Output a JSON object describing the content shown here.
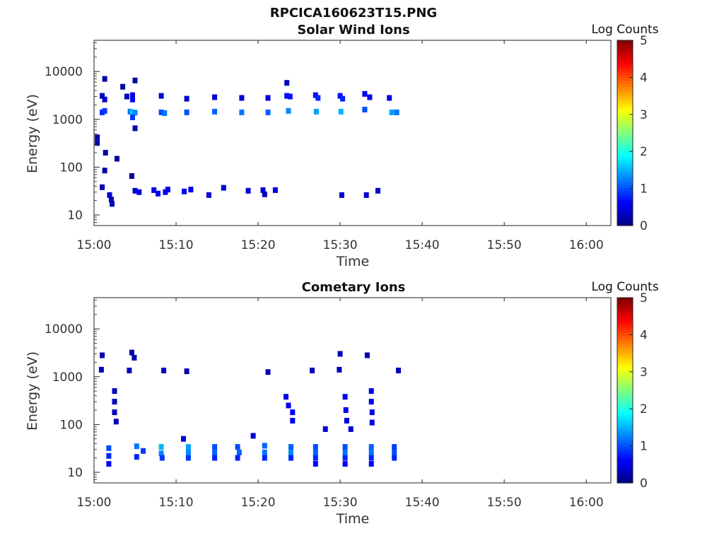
{
  "figure_title": "RPCICA160623T15.PNG",
  "colorbar": {
    "label": "Log Counts",
    "ticks": [
      "0",
      "1",
      "2",
      "3",
      "4",
      "5"
    ],
    "range": [
      0,
      5
    ],
    "colormap": "jet"
  },
  "chart_data": [
    {
      "type": "heatmap",
      "title": "Solar Wind Ions",
      "xlabel": "Time",
      "ylabel": "Energy (eV)",
      "x_ticks": [
        "15:00",
        "15:10",
        "15:20",
        "15:30",
        "15:40",
        "15:50",
        "16:00"
      ],
      "y_ticks": [
        "10",
        "100",
        "1000",
        "10000"
      ],
      "y_scale": "log",
      "ylim": [
        6,
        45000
      ],
      "xlim_minutes_after_15_00": [
        0,
        63
      ],
      "cells": [
        {
          "t": 1.0,
          "e": 3100,
          "v": 0.3
        },
        {
          "t": 1.0,
          "e": 1400,
          "v": 0.8
        },
        {
          "t": 1.3,
          "e": 7000,
          "v": 0.2
        },
        {
          "t": 1.3,
          "e": 2600,
          "v": 0.4
        },
        {
          "t": 1.3,
          "e": 1500,
          "v": 0.9
        },
        {
          "t": 0.4,
          "e": 420,
          "v": 0.2
        },
        {
          "t": 0.4,
          "e": 320,
          "v": 0.2
        },
        {
          "t": 1.4,
          "e": 200,
          "v": 0.2
        },
        {
          "t": 2.8,
          "e": 150,
          "v": 0.2
        },
        {
          "t": 1.3,
          "e": 85,
          "v": 0.2
        },
        {
          "t": 3.5,
          "e": 4800,
          "v": 0.2
        },
        {
          "t": 4.0,
          "e": 3000,
          "v": 0.3
        },
        {
          "t": 4.7,
          "e": 3200,
          "v": 0.5
        },
        {
          "t": 4.7,
          "e": 2600,
          "v": 0.6
        },
        {
          "t": 4.4,
          "e": 1450,
          "v": 1.2
        },
        {
          "t": 4.7,
          "e": 1400,
          "v": 1.6
        },
        {
          "t": 5.0,
          "e": 1380,
          "v": 1.3
        },
        {
          "t": 4.7,
          "e": 1100,
          "v": 0.9
        },
        {
          "t": 5.0,
          "e": 6500,
          "v": 0.2
        },
        {
          "t": 5.0,
          "e": 650,
          "v": 0.2
        },
        {
          "t": 4.6,
          "e": 65,
          "v": 0.1
        },
        {
          "t": 8.2,
          "e": 3100,
          "v": 0.4
        },
        {
          "t": 8.2,
          "e": 1400,
          "v": 1.0
        },
        {
          "t": 8.6,
          "e": 1350,
          "v": 1.2
        },
        {
          "t": 11.3,
          "e": 2700,
          "v": 0.4
        },
        {
          "t": 11.3,
          "e": 1400,
          "v": 1.0
        },
        {
          "t": 14.7,
          "e": 2900,
          "v": 0.4
        },
        {
          "t": 14.7,
          "e": 1450,
          "v": 1.1
        },
        {
          "t": 18.0,
          "e": 2800,
          "v": 0.4
        },
        {
          "t": 18.0,
          "e": 1400,
          "v": 1.2
        },
        {
          "t": 21.2,
          "e": 2800,
          "v": 0.4
        },
        {
          "t": 21.2,
          "e": 1400,
          "v": 1.1
        },
        {
          "t": 23.5,
          "e": 5800,
          "v": 0.3
        },
        {
          "t": 23.5,
          "e": 3100,
          "v": 0.6
        },
        {
          "t": 23.9,
          "e": 3000,
          "v": 0.7
        },
        {
          "t": 23.7,
          "e": 1500,
          "v": 1.3
        },
        {
          "t": 27.0,
          "e": 3200,
          "v": 0.7
        },
        {
          "t": 27.3,
          "e": 2800,
          "v": 0.8
        },
        {
          "t": 27.1,
          "e": 1450,
          "v": 1.4
        },
        {
          "t": 30.0,
          "e": 3100,
          "v": 0.7
        },
        {
          "t": 30.3,
          "e": 2700,
          "v": 0.8
        },
        {
          "t": 30.1,
          "e": 1450,
          "v": 1.5
        },
        {
          "t": 33.0,
          "e": 3400,
          "v": 0.6
        },
        {
          "t": 33.0,
          "e": 1600,
          "v": 1.0
        },
        {
          "t": 33.6,
          "e": 2900,
          "v": 0.5
        },
        {
          "t": 36.0,
          "e": 2800,
          "v": 0.5
        },
        {
          "t": 36.3,
          "e": 1400,
          "v": 1.4
        },
        {
          "t": 36.9,
          "e": 1400,
          "v": 1.2
        },
        {
          "t": 1.9,
          "e": 26,
          "v": 0.4
        },
        {
          "t": 2.1,
          "e": 21,
          "v": 0.3
        },
        {
          "t": 2.2,
          "e": 17,
          "v": 0.3
        },
        {
          "t": 1.0,
          "e": 38,
          "v": 0.2
        },
        {
          "t": 5.0,
          "e": 32,
          "v": 0.4
        },
        {
          "t": 5.5,
          "e": 30,
          "v": 0.5
        },
        {
          "t": 7.3,
          "e": 33,
          "v": 0.5
        },
        {
          "t": 7.8,
          "e": 28,
          "v": 0.6
        },
        {
          "t": 8.7,
          "e": 30,
          "v": 0.5
        },
        {
          "t": 9.0,
          "e": 34,
          "v": 0.5
        },
        {
          "t": 11.0,
          "e": 31,
          "v": 0.5
        },
        {
          "t": 11.8,
          "e": 34,
          "v": 0.5
        },
        {
          "t": 14.0,
          "e": 26,
          "v": 0.4
        },
        {
          "t": 15.8,
          "e": 37,
          "v": 0.4
        },
        {
          "t": 18.8,
          "e": 32,
          "v": 0.4
        },
        {
          "t": 20.6,
          "e": 33,
          "v": 0.4
        },
        {
          "t": 20.8,
          "e": 27,
          "v": 0.3
        },
        {
          "t": 22.1,
          "e": 33,
          "v": 0.5
        },
        {
          "t": 30.2,
          "e": 26,
          "v": 0.4
        },
        {
          "t": 33.2,
          "e": 26,
          "v": 0.4
        },
        {
          "t": 34.6,
          "e": 32,
          "v": 0.4
        }
      ]
    },
    {
      "type": "heatmap",
      "title": "Cometary Ions",
      "xlabel": "Time",
      "ylabel": "Energy (eV)",
      "x_ticks": [
        "15:00",
        "15:10",
        "15:20",
        "15:30",
        "15:40",
        "15:50",
        "16:00"
      ],
      "y_ticks": [
        "10",
        "100",
        "1000",
        "10000"
      ],
      "y_scale": "log",
      "ylim": [
        6,
        45000
      ],
      "xlim_minutes_after_15_00": [
        0,
        63
      ],
      "cells": [
        {
          "t": 1.0,
          "e": 2800,
          "v": 0.2
        },
        {
          "t": 0.9,
          "e": 1400,
          "v": 0.3
        },
        {
          "t": 4.6,
          "e": 3200,
          "v": 0.2
        },
        {
          "t": 4.9,
          "e": 2500,
          "v": 0.2
        },
        {
          "t": 4.3,
          "e": 1350,
          "v": 0.3
        },
        {
          "t": 8.5,
          "e": 1350,
          "v": 0.3
        },
        {
          "t": 11.3,
          "e": 1300,
          "v": 0.2
        },
        {
          "t": 21.2,
          "e": 1250,
          "v": 0.3
        },
        {
          "t": 26.6,
          "e": 1350,
          "v": 0.3
        },
        {
          "t": 30.0,
          "e": 3000,
          "v": 0.3
        },
        {
          "t": 29.9,
          "e": 1400,
          "v": 0.3
        },
        {
          "t": 33.3,
          "e": 2800,
          "v": 0.2
        },
        {
          "t": 37.1,
          "e": 1350,
          "v": 0.3
        },
        {
          "t": 2.5,
          "e": 500,
          "v": 0.3
        },
        {
          "t": 2.5,
          "e": 300,
          "v": 0.3
        },
        {
          "t": 2.5,
          "e": 180,
          "v": 0.3
        },
        {
          "t": 2.7,
          "e": 115,
          "v": 0.3
        },
        {
          "t": 23.4,
          "e": 380,
          "v": 0.5
        },
        {
          "t": 23.7,
          "e": 250,
          "v": 0.5
        },
        {
          "t": 24.2,
          "e": 180,
          "v": 0.6
        },
        {
          "t": 24.2,
          "e": 120,
          "v": 0.5
        },
        {
          "t": 28.2,
          "e": 80,
          "v": 0.4
        },
        {
          "t": 30.6,
          "e": 380,
          "v": 0.5
        },
        {
          "t": 30.7,
          "e": 200,
          "v": 0.6
        },
        {
          "t": 30.8,
          "e": 120,
          "v": 0.5
        },
        {
          "t": 31.3,
          "e": 80,
          "v": 0.4
        },
        {
          "t": 33.8,
          "e": 500,
          "v": 0.5
        },
        {
          "t": 33.8,
          "e": 300,
          "v": 0.5
        },
        {
          "t": 33.9,
          "e": 180,
          "v": 0.5
        },
        {
          "t": 33.9,
          "e": 110,
          "v": 0.5
        },
        {
          "t": 1.8,
          "e": 32,
          "v": 1.0
        },
        {
          "t": 1.8,
          "e": 22,
          "v": 0.8
        },
        {
          "t": 1.8,
          "e": 15,
          "v": 0.6
        },
        {
          "t": 5.2,
          "e": 35,
          "v": 1.2
        },
        {
          "t": 5.2,
          "e": 21,
          "v": 0.8
        },
        {
          "t": 6.0,
          "e": 28,
          "v": 0.9
        },
        {
          "t": 8.2,
          "e": 34,
          "v": 1.5
        },
        {
          "t": 8.2,
          "e": 25,
          "v": 1.3
        },
        {
          "t": 8.3,
          "e": 20,
          "v": 0.9
        },
        {
          "t": 11.5,
          "e": 34,
          "v": 1.4
        },
        {
          "t": 11.5,
          "e": 26,
          "v": 1.3
        },
        {
          "t": 11.5,
          "e": 20,
          "v": 0.9
        },
        {
          "t": 14.7,
          "e": 34,
          "v": 1.0
        },
        {
          "t": 14.7,
          "e": 26,
          "v": 1.1
        },
        {
          "t": 14.7,
          "e": 20,
          "v": 0.8
        },
        {
          "t": 17.5,
          "e": 34,
          "v": 1.0
        },
        {
          "t": 17.7,
          "e": 26,
          "v": 1.1
        },
        {
          "t": 17.5,
          "e": 20,
          "v": 0.8
        },
        {
          "t": 20.8,
          "e": 36,
          "v": 1.1
        },
        {
          "t": 20.8,
          "e": 26,
          "v": 1.2
        },
        {
          "t": 20.8,
          "e": 20,
          "v": 0.8
        },
        {
          "t": 24.0,
          "e": 34,
          "v": 1.1
        },
        {
          "t": 24.0,
          "e": 26,
          "v": 1.3
        },
        {
          "t": 24.0,
          "e": 20,
          "v": 0.8
        },
        {
          "t": 27.0,
          "e": 34,
          "v": 1.0
        },
        {
          "t": 27.0,
          "e": 26,
          "v": 1.1
        },
        {
          "t": 27.0,
          "e": 20,
          "v": 0.8
        },
        {
          "t": 27.0,
          "e": 15,
          "v": 0.6
        },
        {
          "t": 30.6,
          "e": 34,
          "v": 1.0
        },
        {
          "t": 30.6,
          "e": 26,
          "v": 1.2
        },
        {
          "t": 30.6,
          "e": 20,
          "v": 0.8
        },
        {
          "t": 30.6,
          "e": 15,
          "v": 0.6
        },
        {
          "t": 33.8,
          "e": 34,
          "v": 1.1
        },
        {
          "t": 33.8,
          "e": 26,
          "v": 1.2
        },
        {
          "t": 33.8,
          "e": 20,
          "v": 0.8
        },
        {
          "t": 33.8,
          "e": 15,
          "v": 0.6
        },
        {
          "t": 36.6,
          "e": 34,
          "v": 0.9
        },
        {
          "t": 36.6,
          "e": 26,
          "v": 1.0
        },
        {
          "t": 36.6,
          "e": 20,
          "v": 0.8
        },
        {
          "t": 19.4,
          "e": 58,
          "v": 0.4
        },
        {
          "t": 10.9,
          "e": 50,
          "v": 0.4
        }
      ]
    }
  ]
}
